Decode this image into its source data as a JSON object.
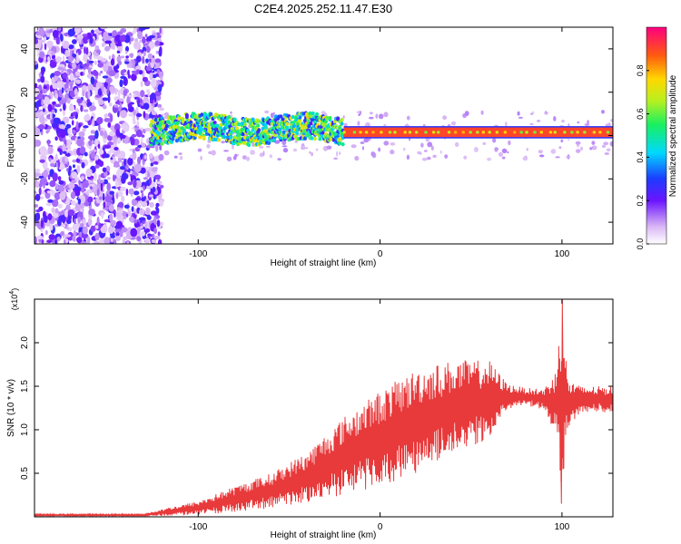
{
  "title": "C2E4.2025.252.11.47.E30",
  "colors": {
    "signal": "#e8393b",
    "axis": "#000000"
  },
  "chart_data": [
    {
      "type": "heatmap",
      "title": "C2E4.2025.252.11.47.E30",
      "xlabel": "Height of straight line (km)",
      "ylabel": "Frequency (Hz)",
      "xlim": [
        -190,
        128
      ],
      "ylim": [
        -50,
        50
      ],
      "x_ticks": [
        -100,
        0,
        100
      ],
      "y_ticks": [
        -40,
        -20,
        0,
        20,
        40
      ],
      "colorbar": {
        "label": "Normalized spectral amplitude",
        "range": [
          0.0,
          1.0
        ],
        "ticks": [
          0.0,
          0.2,
          0.4,
          0.6,
          0.8
        ],
        "tick_labels": [
          "0.0",
          "0.2",
          "0.4",
          "0.6",
          "0.8"
        ]
      },
      "features": [
        {
          "name": "noise_region",
          "x_range": [
            -190,
            -126
          ],
          "freq_range": [
            -50,
            50
          ],
          "amplitude": 0.2
        },
        {
          "name": "broad_band",
          "x_range": [
            -126,
            -20
          ],
          "center_freq_hz": 3,
          "half_width_hz": 6,
          "amplitude": 0.45
        },
        {
          "name": "narrow_line",
          "x_range": [
            -20,
            128
          ],
          "center_freq_hz": 1.5,
          "half_width_hz": 2,
          "amplitude": 0.95
        }
      ]
    },
    {
      "type": "line",
      "xlabel": "Height of straight line (km)",
      "ylabel": "SNR (10 * v/v)",
      "scale_label": "(x10",
      "scale_exponent": "4",
      "xlim": [
        -190,
        128
      ],
      "ylim": [
        0,
        2.5
      ],
      "x_ticks": [
        -100,
        0,
        100
      ],
      "y_ticks": [
        0.5,
        1.0,
        1.5,
        2.0
      ],
      "y_tick_labels": [
        "0.5",
        "1.0",
        "1.5",
        "2.0"
      ],
      "envelope": {
        "x": [
          -190,
          -130,
          -120,
          -100,
          -80,
          -60,
          -40,
          -20,
          0,
          20,
          40,
          60,
          70,
          80,
          90,
          97,
          100,
          103,
          110,
          128
        ],
        "mean": [
          0.02,
          0.02,
          0.05,
          0.1,
          0.2,
          0.3,
          0.45,
          0.7,
          0.9,
          1.1,
          1.25,
          1.35,
          1.38,
          1.38,
          1.35,
          1.3,
          1.4,
          1.3,
          1.35,
          1.35
        ],
        "spread": [
          0.01,
          0.01,
          0.04,
          0.08,
          0.15,
          0.2,
          0.3,
          0.45,
          0.55,
          0.6,
          0.55,
          0.45,
          0.15,
          0.1,
          0.12,
          0.4,
          1.1,
          0.3,
          0.15,
          0.15
        ]
      },
      "peak": {
        "x": 100,
        "value": 2.5,
        "min_value": 0.15
      }
    }
  ]
}
